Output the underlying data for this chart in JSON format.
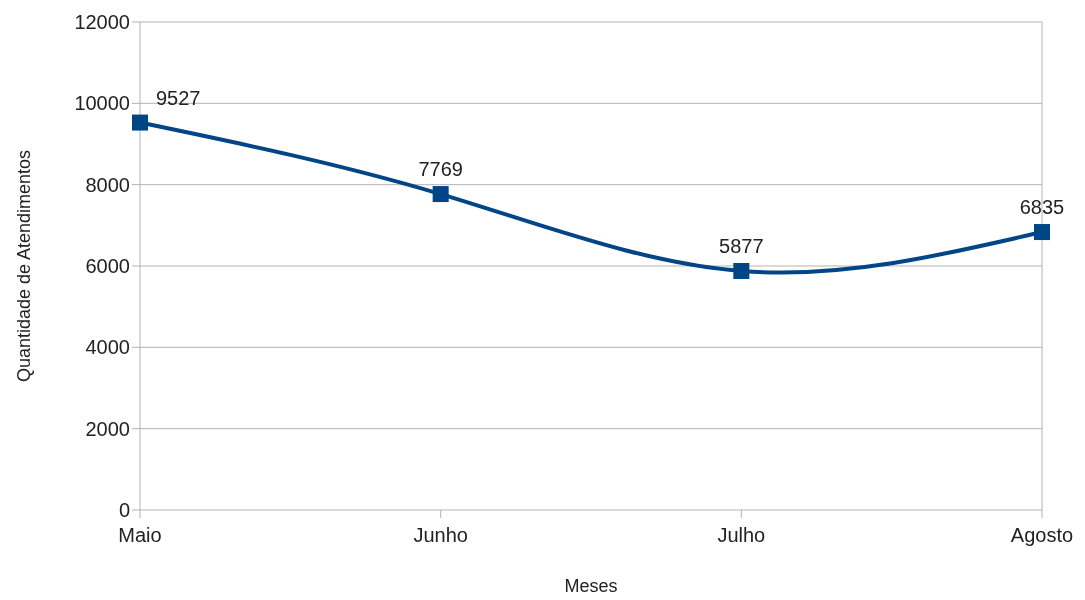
{
  "chart_data": {
    "type": "line",
    "xlabel": "Meses",
    "ylabel": "Quantidade de Atendimentos",
    "categories": [
      "Maio",
      "Junho",
      "Julho",
      "Agosto"
    ],
    "series": [
      {
        "color": "#004586",
        "values": [
          9527,
          7769,
          5877,
          6835
        ]
      }
    ],
    "ylim": [
      0,
      12000
    ],
    "yticks": [
      0,
      2000,
      4000,
      6000,
      8000,
      10000,
      12000
    ],
    "grid": "y",
    "marker": "square",
    "line_style": "solid",
    "data_labels": true
  }
}
